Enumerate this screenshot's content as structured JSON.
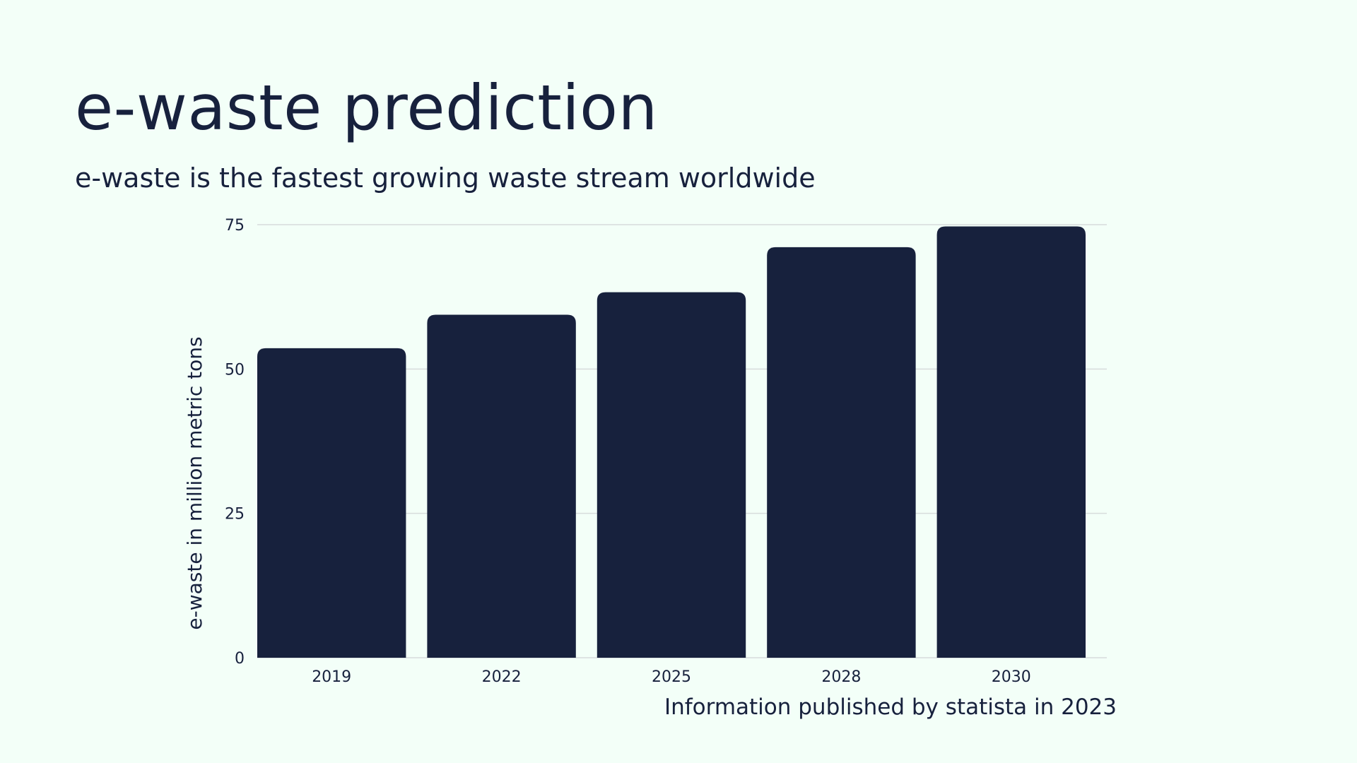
{
  "page": {
    "title": "e-waste prediction",
    "subtitle": "e-waste is the fastest growing waste stream worldwide",
    "source_note": "Information published by statista in 2023"
  },
  "colors": {
    "background": "#f3fff8",
    "bar": "#17213d",
    "text": "#17213d",
    "grid": "#d7dcdc"
  },
  "chart_data": {
    "type": "bar",
    "categories": [
      "2019",
      "2022",
      "2025",
      "2028",
      "2030"
    ],
    "values": [
      53.6,
      59.4,
      63.3,
      71.1,
      74.7
    ],
    "xlabel": "",
    "ylabel": "e-waste in million metric tons",
    "ylim": [
      0,
      75
    ],
    "yticks": [
      0,
      25,
      50,
      75
    ],
    "grid": true,
    "legend": "none"
  }
}
